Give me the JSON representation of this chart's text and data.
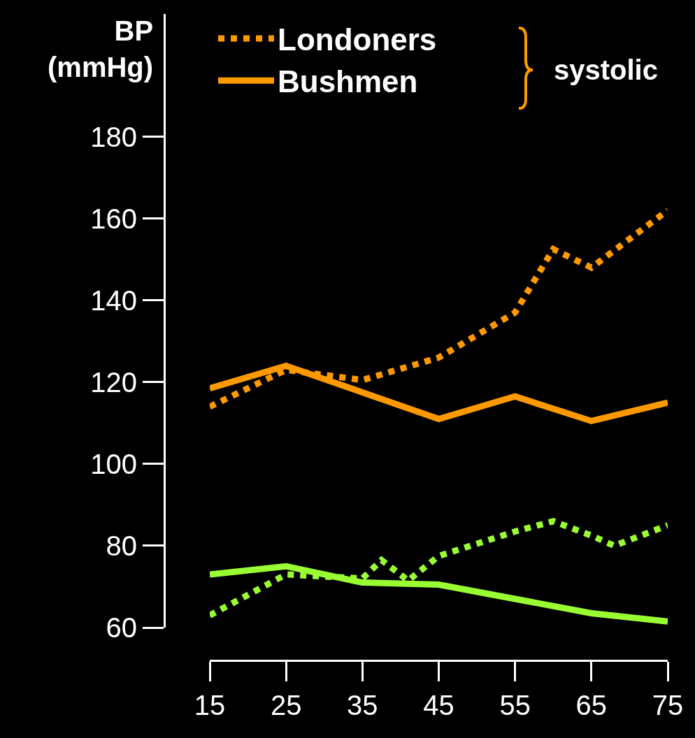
{
  "chart_data": {
    "type": "line",
    "ylabel": "BP\n(mmHg)",
    "xlim": [
      15,
      75
    ],
    "xticks": [
      15,
      25,
      35,
      45,
      55,
      65,
      75
    ],
    "ylim": [
      60,
      210
    ],
    "yticks": [
      60,
      80,
      100,
      120,
      140,
      160,
      180
    ],
    "grid": false,
    "legend": "top",
    "marker": "none",
    "annotations": [
      "systolic"
    ],
    "series": [
      {
        "name": "Londoners",
        "color": "#ff9900",
        "line_style": "dotted",
        "x": [
          15,
          25,
          35,
          45,
          55,
          60,
          65,
          75
        ],
        "values": [
          114,
          123,
          120.5,
          126,
          137,
          152.5,
          148,
          162
        ]
      },
      {
        "name": "Bushmen",
        "color": "#ff9900",
        "line_style": "solid",
        "x": [
          15,
          25,
          35,
          45,
          55,
          65,
          75
        ],
        "values": [
          118.5,
          124,
          117.5,
          111,
          116.5,
          110.5,
          115
        ]
      },
      {
        "color": "#99ff33",
        "line_style": "dotted",
        "x": [
          15,
          25,
          35,
          37.5,
          41,
          45,
          55,
          60,
          65,
          68,
          75
        ],
        "values": [
          63,
          73,
          72,
          76.5,
          71.5,
          77.5,
          83.5,
          86,
          82.5,
          80,
          85
        ]
      },
      {
        "color": "#99ff33",
        "line_style": "solid",
        "x": [
          15,
          25,
          35,
          45,
          55,
          65,
          75
        ],
        "values": [
          73,
          75,
          71,
          70.5,
          67,
          63.5,
          61.5
        ]
      }
    ]
  }
}
